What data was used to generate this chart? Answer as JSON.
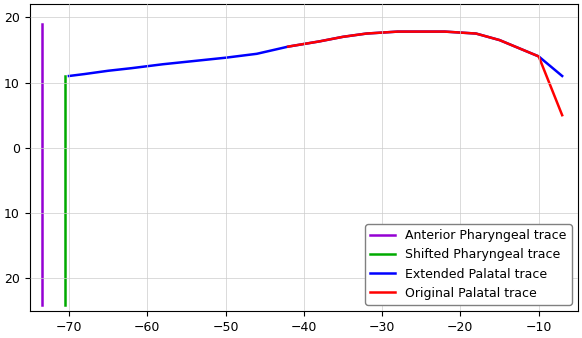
{
  "title": "",
  "xlim": [
    -75,
    -5
  ],
  "ylim": [
    -25,
    22
  ],
  "xticks": [
    -70,
    -60,
    -50,
    -40,
    -30,
    -20,
    -10
  ],
  "yticks": [
    20,
    10,
    0,
    -10,
    -20
  ],
  "yticklabels": [
    "20",
    "10",
    "0",
    "10",
    "20"
  ],
  "anterior_pharyngeal": {
    "x": [
      -73.5,
      -73.5
    ],
    "y": [
      19,
      -24
    ],
    "color": "#9400D3",
    "label": "Anterior Pharyngeal trace",
    "linewidth": 1.8
  },
  "shifted_pharyngeal": {
    "x": [
      -70.5,
      -70.5
    ],
    "y": [
      11,
      -24
    ],
    "color": "#00AA00",
    "label": "Shifted Pharyngeal trace",
    "linewidth": 1.8
  },
  "extended_palatal": {
    "x": [
      -70,
      -68,
      -65,
      -62,
      -58,
      -54,
      -50,
      -46,
      -42,
      -38,
      -35,
      -32,
      -28,
      -22,
      -18,
      -15,
      -10,
      -7
    ],
    "y": [
      11,
      11.3,
      11.8,
      12.2,
      12.8,
      13.3,
      13.8,
      14.4,
      15.5,
      16.3,
      17.0,
      17.5,
      17.8,
      17.8,
      17.5,
      16.5,
      14.0,
      11.0
    ],
    "color": "#0000FF",
    "label": "Extended Palatal trace",
    "linewidth": 1.8
  },
  "original_palatal": {
    "x": [
      -42,
      -38,
      -35,
      -32,
      -28,
      -22,
      -18,
      -15,
      -10,
      -7
    ],
    "y": [
      15.5,
      16.3,
      17.0,
      17.5,
      17.8,
      17.8,
      17.5,
      16.5,
      14.0,
      5.0
    ],
    "color": "#FF0000",
    "label": "Original Palatal trace",
    "linewidth": 1.8
  },
  "legend_loc": "lower right",
  "legend_fontsize": 9,
  "bg_color": "#FFFFFF",
  "grid_color": "#CCCCCC"
}
